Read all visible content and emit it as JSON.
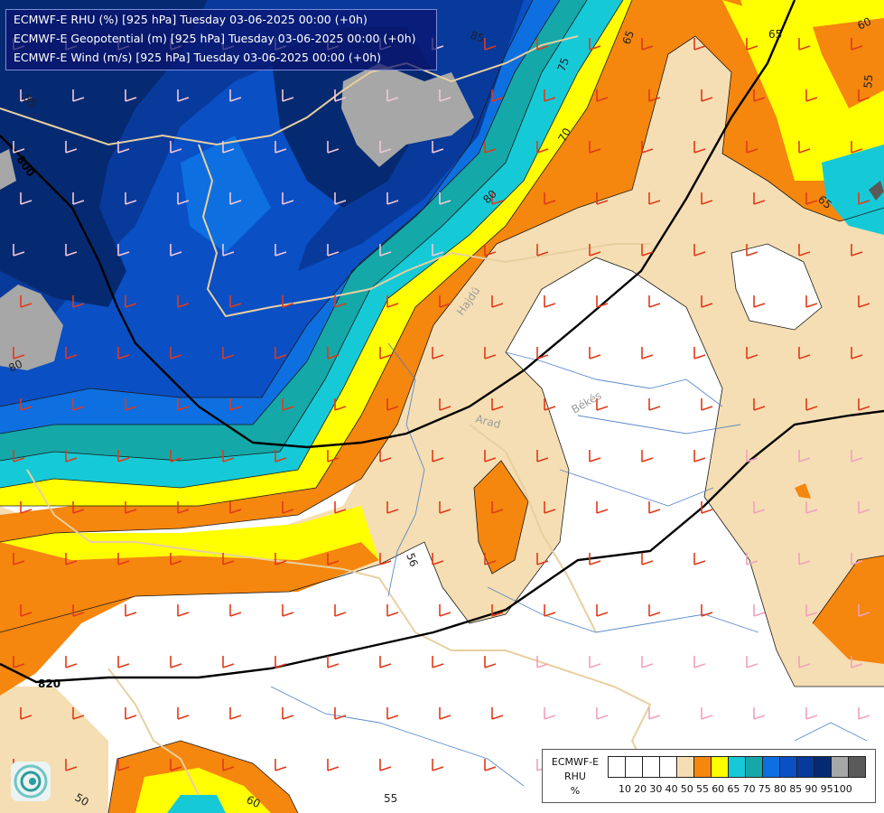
{
  "title_lines": [
    "ECMWF-E RHU (%) [925 hPa] Tuesday 03-06-2025 00:00 (+0h)",
    "ECMWF-E Geopotential (m) [925 hPa] Tuesday 03-06-2025 00:00 (+0h)",
    "ECMWF-E Wind (m/s) [925 hPa] Tuesday 03-06-2025 00:00 (+0h)"
  ],
  "map_labels": {
    "city_hajdu": "Hajdú",
    "city_bekes": "Békés",
    "city_arad": "Arad"
  },
  "contour_labels": [
    "85",
    "75",
    "65",
    "70",
    "80",
    "65",
    "60",
    "55",
    "65",
    "85",
    "80",
    "56",
    "50",
    "60",
    "55"
  ],
  "geopotential_labels": [
    "800",
    "820",
    "65"
  ],
  "legend": {
    "title_lines": [
      "ECMWF-E",
      "RHU",
      "%"
    ],
    "values": [
      "10",
      "20",
      "30",
      "40",
      "50",
      "55",
      "60",
      "65",
      "70",
      "75",
      "80",
      "85",
      "90",
      "95",
      "100"
    ],
    "colors": [
      "#ffffff",
      "#ffffff",
      "#ffffff",
      "#ffffff",
      "#f5deb3",
      "#f5860e",
      "#ffff00",
      "#15cad6",
      "#14a8a8",
      "#0e6fe0",
      "#0a4fc4",
      "#083a9c",
      "#062a72",
      "#a7a7a7",
      "#5a5a5a"
    ]
  },
  "colors": {
    "rh_50": "#f5deb3",
    "rh_55": "#f5860e",
    "rh_60": "#ffff00",
    "rh_65": "#15cad6",
    "rh_70": "#14a8a8",
    "rh_75": "#0e6fe0",
    "rh_80": "#0a4fc4",
    "rh_85": "#083a9c",
    "rh_90": "#062a72",
    "rh_95": "#a7a7a7"
  }
}
